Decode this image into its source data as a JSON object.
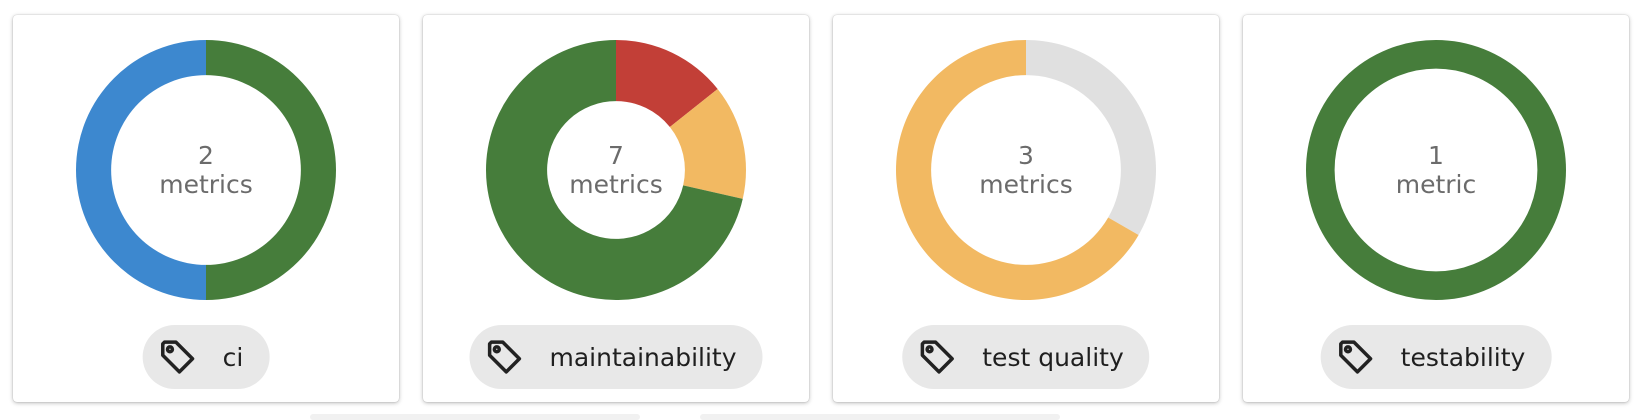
{
  "cards": [
    {
      "count": "2",
      "unit": "metrics",
      "tag": "ci",
      "segments": [
        {
          "status": "green",
          "color": "#467d3b",
          "value": 1
        },
        {
          "status": "blue",
          "color": "#3d88cf",
          "value": 1
        }
      ]
    },
    {
      "count": "7",
      "unit": "metrics",
      "tag": "maintainability",
      "segments": [
        {
          "status": "red",
          "color": "#c23f37",
          "value": 1
        },
        {
          "status": "yellow",
          "color": "#f2b962",
          "value": 1
        },
        {
          "status": "green",
          "color": "#467d3b",
          "value": 5
        }
      ]
    },
    {
      "count": "3",
      "unit": "metrics",
      "tag": "test quality",
      "segments": [
        {
          "status": "grey",
          "color": "#e0e0e0",
          "value": 1
        },
        {
          "status": "yellow",
          "color": "#f2b962",
          "value": 2
        }
      ]
    },
    {
      "count": "1",
      "unit": "metric",
      "tag": "testability",
      "segments": [
        {
          "status": "green",
          "color": "#467d3b",
          "value": 1
        }
      ]
    }
  ],
  "icons": {
    "tag": "tag-icon"
  }
}
